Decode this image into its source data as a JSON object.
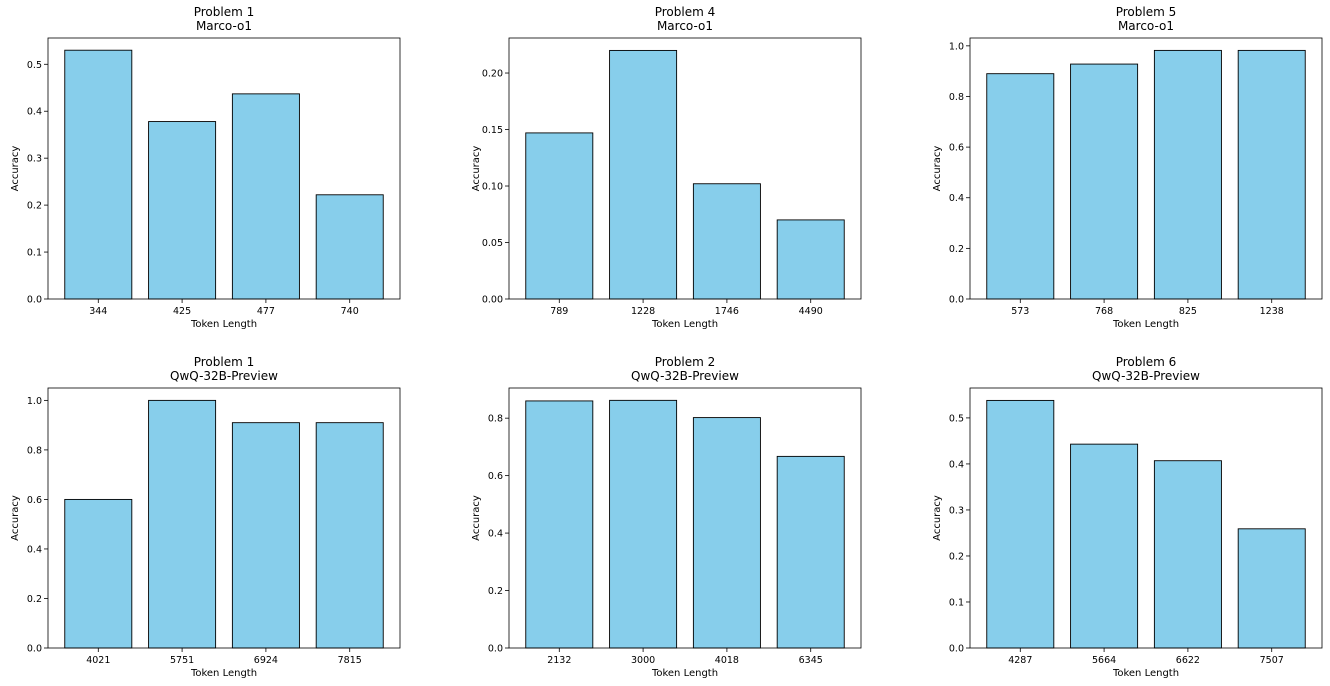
{
  "chart_data": [
    {
      "type": "bar",
      "title": "Problem 1",
      "subtitle": "Marco-o1",
      "xlabel": "Token Length",
      "ylabel": "Accuracy",
      "categories": [
        "344",
        "425",
        "477",
        "740"
      ],
      "values": [
        0.53,
        0.378,
        0.437,
        0.222
      ],
      "ylim": [
        0,
        0.556
      ],
      "yticks": [
        0.0,
        0.1,
        0.2,
        0.3,
        0.4,
        0.5
      ],
      "ytick_labels": [
        "0.0",
        "0.1",
        "0.2",
        "0.3",
        "0.4",
        "0.5"
      ],
      "bar_color": "#87CEEB",
      "edge_color": "#000000"
    },
    {
      "type": "bar",
      "title": "Problem 4",
      "subtitle": "Marco-o1",
      "xlabel": "Token Length",
      "ylabel": "Accuracy",
      "categories": [
        "789",
        "1228",
        "1746",
        "4490"
      ],
      "values": [
        0.147,
        0.22,
        0.102,
        0.07
      ],
      "ylim": [
        0,
        0.231
      ],
      "yticks": [
        0.0,
        0.05,
        0.1,
        0.15,
        0.2
      ],
      "ytick_labels": [
        "0.00",
        "0.05",
        "0.10",
        "0.15",
        "0.20"
      ],
      "bar_color": "#87CEEB",
      "edge_color": "#000000"
    },
    {
      "type": "bar",
      "title": "Problem 5",
      "subtitle": "Marco-o1",
      "xlabel": "Token Length",
      "ylabel": "Accuracy",
      "categories": [
        "573",
        "768",
        "825",
        "1238"
      ],
      "values": [
        0.89,
        0.928,
        0.982,
        0.982
      ],
      "ylim": [
        0,
        1.031
      ],
      "yticks": [
        0.0,
        0.2,
        0.4,
        0.6,
        0.8,
        1.0
      ],
      "ytick_labels": [
        "0.0",
        "0.2",
        "0.4",
        "0.6",
        "0.8",
        "1.0"
      ],
      "bar_color": "#87CEEB",
      "edge_color": "#000000"
    },
    {
      "type": "bar",
      "title": "Problem 1",
      "subtitle": "QwQ-32B-Preview",
      "xlabel": "Token Length",
      "ylabel": "Accuracy",
      "categories": [
        "4021",
        "5751",
        "6924",
        "7815"
      ],
      "values": [
        0.6,
        1.0,
        0.91,
        0.91
      ],
      "ylim": [
        0,
        1.05
      ],
      "yticks": [
        0.0,
        0.2,
        0.4,
        0.6,
        0.8,
        1.0
      ],
      "ytick_labels": [
        "0.0",
        "0.2",
        "0.4",
        "0.6",
        "0.8",
        "1.0"
      ],
      "bar_color": "#87CEEB",
      "edge_color": "#000000"
    },
    {
      "type": "bar",
      "title": "Problem 2",
      "subtitle": "QwQ-32B-Preview",
      "xlabel": "Token Length",
      "ylabel": "Accuracy",
      "categories": [
        "2132",
        "3000",
        "4018",
        "6345"
      ],
      "values": [
        0.86,
        0.862,
        0.802,
        0.667
      ],
      "ylim": [
        0,
        0.905
      ],
      "yticks": [
        0.0,
        0.2,
        0.4,
        0.6,
        0.8
      ],
      "ytick_labels": [
        "0.0",
        "0.2",
        "0.4",
        "0.6",
        "0.8"
      ],
      "bar_color": "#87CEEB",
      "edge_color": "#000000"
    },
    {
      "type": "bar",
      "title": "Problem 6",
      "subtitle": "QwQ-32B-Preview",
      "xlabel": "Token Length",
      "ylabel": "Accuracy",
      "categories": [
        "4287",
        "5664",
        "6622",
        "7507"
      ],
      "values": [
        0.538,
        0.443,
        0.407,
        0.259
      ],
      "ylim": [
        0,
        0.565
      ],
      "yticks": [
        0.0,
        0.1,
        0.2,
        0.3,
        0.4,
        0.5
      ],
      "ytick_labels": [
        "0.0",
        "0.1",
        "0.2",
        "0.3",
        "0.4",
        "0.5"
      ],
      "bar_color": "#87CEEB",
      "edge_color": "#000000"
    }
  ]
}
